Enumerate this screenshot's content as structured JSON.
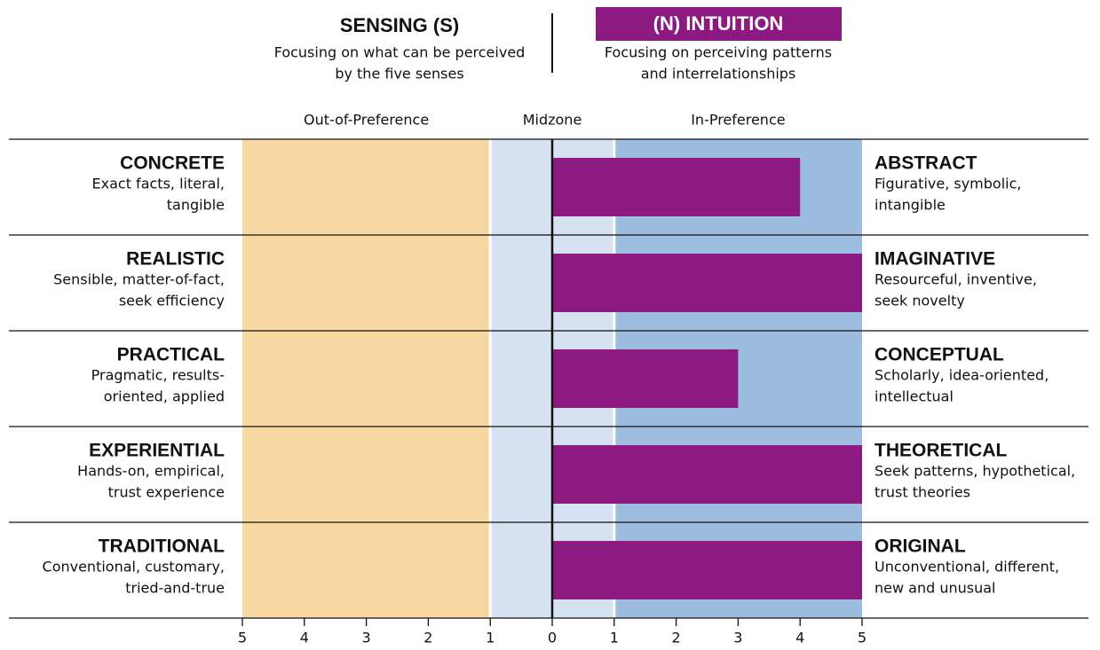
{
  "chart_data": {
    "type": "bar",
    "orientation": "horizontal",
    "left_pole": {
      "title": "SENSING (S)",
      "desc": [
        "Focusing on what can be perceived",
        "by the five senses"
      ]
    },
    "right_pole": {
      "title": "(N) INTUITION",
      "desc": [
        "Focusing on perceiving patterns",
        "and interrelationships"
      ],
      "color": "#8c1a80"
    },
    "zones": [
      {
        "label": "Out-of-Preference",
        "range": [
          -5,
          -1
        ],
        "color": "#f8d8a2"
      },
      {
        "label": "Midzone",
        "range": [
          -1,
          1
        ],
        "color": "#d6e2f1"
      },
      {
        "label": "In-Preference",
        "range": [
          1,
          5
        ],
        "color": "#9dbde0"
      }
    ],
    "facets": [
      {
        "left": {
          "name": "CONCRETE",
          "desc": [
            "Exact facts, literal,",
            "tangible"
          ]
        },
        "right": {
          "name": "ABSTRACT",
          "desc": [
            "Figurative, symbolic,",
            "intangible"
          ]
        }
      },
      {
        "left": {
          "name": "REALISTIC",
          "desc": [
            "Sensible, matter-of-fact,",
            "seek efficiency"
          ]
        },
        "right": {
          "name": "IMAGINATIVE",
          "desc": [
            "Resourceful, inventive,",
            "seek novelty"
          ]
        }
      },
      {
        "left": {
          "name": "PRACTICAL",
          "desc": [
            "Pragmatic, results-",
            "oriented, applied"
          ]
        },
        "right": {
          "name": "CONCEPTUAL",
          "desc": [
            "Scholarly, idea-oriented,",
            "intellectual"
          ]
        }
      },
      {
        "left": {
          "name": "EXPERIENTIAL",
          "desc": [
            "Hands-on, empirical,",
            "trust experience"
          ]
        },
        "right": {
          "name": "THEORETICAL",
          "desc": [
            "Seek patterns, hypothetical,",
            "trust theories"
          ]
        }
      },
      {
        "left": {
          "name": "TRADITIONAL",
          "desc": [
            "Conventional, customary,",
            "tried-and-true"
          ]
        },
        "right": {
          "name": "ORIGINAL",
          "desc": [
            "Unconventional, different,",
            "new and unusual"
          ]
        }
      }
    ],
    "values": [
      4,
      5,
      3,
      5,
      5
    ],
    "color": "#8c1a80",
    "xlim": [
      -5,
      5
    ],
    "xticks": [
      {
        "value": -5,
        "label": "5"
      },
      {
        "value": -4,
        "label": "4"
      },
      {
        "value": -3,
        "label": "3"
      },
      {
        "value": -2,
        "label": "2"
      },
      {
        "value": -1,
        "label": "1"
      },
      0,
      1,
      2,
      3,
      4,
      5
    ]
  }
}
